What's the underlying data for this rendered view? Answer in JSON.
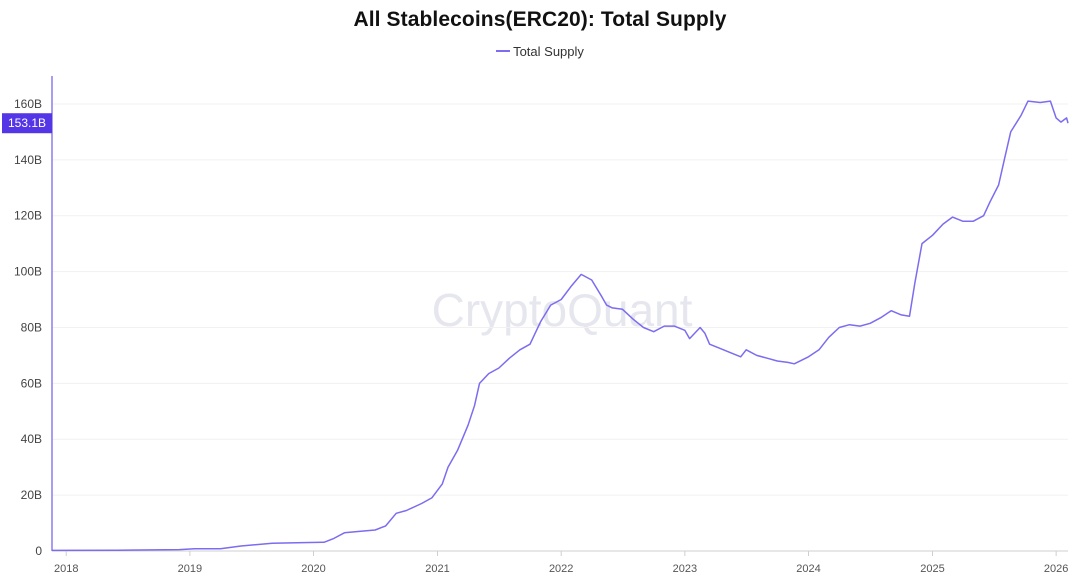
{
  "chart_data": {
    "type": "line",
    "title": "All Stablecoins(ERC20): Total Supply",
    "watermark": "CryptoQuant",
    "legend_position": "top-center",
    "grid": true,
    "xlabel": "",
    "ylabel": "",
    "ylim": [
      0,
      170
    ],
    "y_unit": "B",
    "y_ticks": [
      {
        "value": 0,
        "label": "0"
      },
      {
        "value": 20,
        "label": "20B"
      },
      {
        "value": 40,
        "label": "40B"
      },
      {
        "value": 60,
        "label": "60B"
      },
      {
        "value": 80,
        "label": "80B"
      },
      {
        "value": 100,
        "label": "100B"
      },
      {
        "value": 120,
        "label": "120B"
      },
      {
        "value": 140,
        "label": "140B"
      },
      {
        "value": 160,
        "label": "160B"
      }
    ],
    "xlim": [
      "2017-11-20",
      "2026-02-05"
    ],
    "x_ticks": [
      "2018-01-01",
      "2019-01-01",
      "2020-01-01",
      "2021-01-01",
      "2022-01-01",
      "2023-01-01",
      "2024-01-01",
      "2025-01-01",
      "2026-01-01"
    ],
    "x_tick_labels": [
      "2018",
      "2019",
      "2020",
      "2021",
      "2022",
      "2023",
      "2024",
      "2025",
      "2026"
    ],
    "last_value_label": "153.1B",
    "last_value": 153.1,
    "series": [
      {
        "name": "Total Supply",
        "color": "#7b6cf0",
        "points": [
          [
            "2017-11-20",
            0.2
          ],
          [
            "2018-06-01",
            0.3
          ],
          [
            "2018-12-01",
            0.5
          ],
          [
            "2019-01-15",
            0.8
          ],
          [
            "2019-04-01",
            0.8
          ],
          [
            "2019-06-01",
            1.8
          ],
          [
            "2019-09-01",
            2.8
          ],
          [
            "2019-12-01",
            3.0
          ],
          [
            "2020-02-01",
            3.1
          ],
          [
            "2020-03-01",
            4.5
          ],
          [
            "2020-04-01",
            6.5
          ],
          [
            "2020-05-15",
            7.0
          ],
          [
            "2020-07-01",
            7.5
          ],
          [
            "2020-08-01",
            9.0
          ],
          [
            "2020-09-01",
            13.5
          ],
          [
            "2020-10-01",
            14.5
          ],
          [
            "2020-11-15",
            17.0
          ],
          [
            "2020-12-15",
            19.0
          ],
          [
            "2021-01-15",
            24.0
          ],
          [
            "2021-02-01",
            30.0
          ],
          [
            "2021-03-01",
            36.0
          ],
          [
            "2021-04-01",
            45.0
          ],
          [
            "2021-04-20",
            52.0
          ],
          [
            "2021-05-05",
            60.0
          ],
          [
            "2021-06-01",
            63.5
          ],
          [
            "2021-07-01",
            65.5
          ],
          [
            "2021-08-01",
            69.0
          ],
          [
            "2021-09-01",
            72.0
          ],
          [
            "2021-10-01",
            74.0
          ],
          [
            "2021-11-01",
            82.0
          ],
          [
            "2021-12-01",
            88.0
          ],
          [
            "2022-01-01",
            90.0
          ],
          [
            "2022-02-01",
            95.0
          ],
          [
            "2022-03-01",
            99.0
          ],
          [
            "2022-04-01",
            97.0
          ],
          [
            "2022-05-01",
            91.0
          ],
          [
            "2022-05-15",
            88.0
          ],
          [
            "2022-06-01",
            87.0
          ],
          [
            "2022-07-01",
            86.5
          ],
          [
            "2022-08-01",
            83.0
          ],
          [
            "2022-09-01",
            80.0
          ],
          [
            "2022-10-01",
            78.5
          ],
          [
            "2022-11-01",
            80.5
          ],
          [
            "2022-12-01",
            80.5
          ],
          [
            "2023-01-01",
            79.0
          ],
          [
            "2023-01-15",
            76.0
          ],
          [
            "2023-02-15",
            80.0
          ],
          [
            "2023-03-01",
            78.0
          ],
          [
            "2023-03-15",
            74.0
          ],
          [
            "2023-04-15",
            72.5
          ],
          [
            "2023-05-15",
            71.0
          ],
          [
            "2023-06-15",
            69.5
          ],
          [
            "2023-07-01",
            72.0
          ],
          [
            "2023-08-01",
            70.0
          ],
          [
            "2023-09-01",
            69.0
          ],
          [
            "2023-10-01",
            68.0
          ],
          [
            "2023-11-01",
            67.5
          ],
          [
            "2023-11-20",
            67.0
          ],
          [
            "2024-01-01",
            69.5
          ],
          [
            "2024-02-01",
            72.0
          ],
          [
            "2024-03-01",
            76.5
          ],
          [
            "2024-04-01",
            80.0
          ],
          [
            "2024-05-01",
            81.0
          ],
          [
            "2024-06-01",
            80.5
          ],
          [
            "2024-07-01",
            81.5
          ],
          [
            "2024-08-01",
            83.5
          ],
          [
            "2024-09-01",
            86.0
          ],
          [
            "2024-10-01",
            84.5
          ],
          [
            "2024-10-25",
            84.0
          ],
          [
            "2024-11-10",
            96.0
          ],
          [
            "2024-12-01",
            110.0
          ],
          [
            "2025-01-01",
            113.0
          ],
          [
            "2025-02-01",
            117.0
          ],
          [
            "2025-03-01",
            119.5
          ],
          [
            "2025-04-01",
            118.0
          ],
          [
            "2025-05-01",
            118.0
          ],
          [
            "2025-06-01",
            120.0
          ],
          [
            "2025-06-20",
            125.0
          ],
          [
            "2025-07-15",
            131.0
          ],
          [
            "2025-08-01",
            140.0
          ],
          [
            "2025-08-20",
            150.0
          ],
          [
            "2025-09-20",
            156.0
          ],
          [
            "2025-10-10",
            161.0
          ],
          [
            "2025-11-15",
            160.5
          ],
          [
            "2025-12-15",
            161.0
          ],
          [
            "2026-01-01",
            155.0
          ],
          [
            "2026-01-15",
            153.5
          ],
          [
            "2026-02-01",
            155.0
          ],
          [
            "2026-02-05",
            153.1
          ]
        ]
      }
    ]
  }
}
